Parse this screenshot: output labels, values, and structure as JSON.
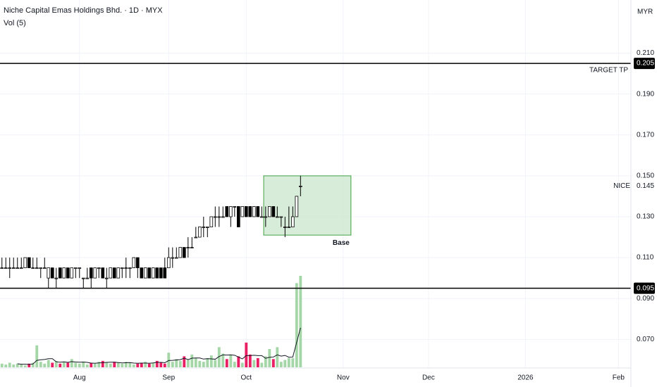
{
  "chart_data": {
    "type": "candlestick",
    "title": "Niche Capital Emas Holdings Bhd. · 1D · MYX",
    "subtitle": "Vol (5)",
    "currency": "MYR",
    "ylim": [
      0.056,
      0.236
    ],
    "yticks": [
      {
        "value": 0.21,
        "label": "0.210"
      },
      {
        "value": 0.19,
        "label": "0.190"
      },
      {
        "value": 0.17,
        "label": "0.170"
      },
      {
        "value": 0.15,
        "label": "0.150"
      },
      {
        "value": 0.13,
        "label": "0.130"
      },
      {
        "value": 0.11,
        "label": "0.110"
      },
      {
        "value": 0.09,
        "label": "0.090"
      },
      {
        "value": 0.07,
        "label": "0.070"
      }
    ],
    "xlim": [
      -0.5,
      162.2
    ],
    "xticks": [
      {
        "value": 20,
        "label": "Aug"
      },
      {
        "value": 43,
        "label": "Sep"
      },
      {
        "value": 63,
        "label": "Oct"
      },
      {
        "value": 88,
        "label": "Nov"
      },
      {
        "value": 110,
        "label": "Dec"
      },
      {
        "value": 135,
        "label": "2026"
      },
      {
        "value": 159,
        "label": "Feb"
      }
    ],
    "grid": true,
    "up_color": "#ffffff",
    "down_color": "#000000",
    "x": [
      0,
      1,
      2,
      3,
      4,
      5,
      6,
      7,
      8,
      9,
      10,
      11,
      12,
      13,
      14,
      15,
      16,
      17,
      18,
      19,
      20,
      21,
      22,
      23,
      24,
      25,
      26,
      27,
      28,
      29,
      30,
      31,
      32,
      33,
      34,
      35,
      36,
      37,
      38,
      39,
      40,
      41,
      42,
      43,
      44,
      45,
      46,
      47,
      48,
      49,
      50,
      51,
      52,
      53,
      54,
      55,
      56,
      57,
      58,
      59,
      60,
      61,
      62,
      63,
      64,
      65,
      66,
      67,
      68,
      69,
      70,
      71,
      72,
      73,
      74,
      75,
      76,
      77
    ],
    "open": [
      0.105,
      0.105,
      0.105,
      0.105,
      0.105,
      0.105,
      0.105,
      0.11,
      0.105,
      0.105,
      0.105,
      0.105,
      0.1,
      0.105,
      0.1,
      0.105,
      0.1,
      0.105,
      0.1,
      0.105,
      0.105,
      0.1,
      0.1,
      0.105,
      0.1,
      0.105,
      0.105,
      0.1,
      0.1,
      0.105,
      0.1,
      0.105,
      0.105,
      0.105,
      0.105,
      0.11,
      0.105,
      0.1,
      0.105,
      0.1,
      0.105,
      0.105,
      0.105,
      0.105,
      0.11,
      0.11,
      0.11,
      0.115,
      0.115,
      0.115,
      0.12,
      0.12,
      0.125,
      0.125,
      0.125,
      0.13,
      0.13,
      0.13,
      0.135,
      0.13,
      0.135,
      0.135,
      0.13,
      0.135,
      0.135,
      0.13,
      0.135,
      0.13,
      0.13,
      0.13,
      0.135,
      0.13,
      0.13,
      0.125,
      0.125,
      0.125,
      0.13,
      0.145
    ],
    "high": [
      0.11,
      0.11,
      0.11,
      0.11,
      0.11,
      0.11,
      0.11,
      0.11,
      0.11,
      0.11,
      0.105,
      0.11,
      0.105,
      0.105,
      0.105,
      0.105,
      0.105,
      0.105,
      0.105,
      0.105,
      0.105,
      0.1,
      0.105,
      0.105,
      0.105,
      0.105,
      0.105,
      0.105,
      0.105,
      0.105,
      0.105,
      0.105,
      0.11,
      0.105,
      0.11,
      0.11,
      0.105,
      0.105,
      0.105,
      0.105,
      0.105,
      0.105,
      0.11,
      0.115,
      0.115,
      0.115,
      0.115,
      0.115,
      0.12,
      0.12,
      0.125,
      0.125,
      0.13,
      0.125,
      0.13,
      0.135,
      0.135,
      0.135,
      0.135,
      0.135,
      0.135,
      0.135,
      0.135,
      0.135,
      0.135,
      0.135,
      0.135,
      0.135,
      0.135,
      0.135,
      0.135,
      0.135,
      0.13,
      0.13,
      0.135,
      0.135,
      0.14,
      0.15
    ],
    "low": [
      0.105,
      0.105,
      0.1,
      0.105,
      0.105,
      0.105,
      0.105,
      0.105,
      0.105,
      0.105,
      0.1,
      0.105,
      0.095,
      0.1,
      0.095,
      0.1,
      0.1,
      0.1,
      0.1,
      0.1,
      0.1,
      0.095,
      0.1,
      0.095,
      0.1,
      0.1,
      0.1,
      0.095,
      0.1,
      0.1,
      0.1,
      0.1,
      0.1,
      0.1,
      0.105,
      0.1,
      0.1,
      0.1,
      0.1,
      0.1,
      0.1,
      0.1,
      0.1,
      0.105,
      0.105,
      0.11,
      0.11,
      0.11,
      0.11,
      0.115,
      0.12,
      0.12,
      0.12,
      0.12,
      0.125,
      0.125,
      0.125,
      0.13,
      0.13,
      0.125,
      0.13,
      0.125,
      0.13,
      0.13,
      0.13,
      0.13,
      0.13,
      0.13,
      0.125,
      0.13,
      0.13,
      0.13,
      0.125,
      0.12,
      0.125,
      0.125,
      0.13,
      0.14
    ],
    "close": [
      0.105,
      0.105,
      0.105,
      0.105,
      0.105,
      0.105,
      0.11,
      0.105,
      0.105,
      0.105,
      0.105,
      0.105,
      0.105,
      0.1,
      0.1,
      0.1,
      0.105,
      0.1,
      0.105,
      0.105,
      0.105,
      0.1,
      0.1,
      0.1,
      0.105,
      0.105,
      0.1,
      0.1,
      0.105,
      0.1,
      0.105,
      0.105,
      0.105,
      0.105,
      0.11,
      0.105,
      0.1,
      0.105,
      0.1,
      0.105,
      0.1,
      0.1,
      0.1,
      0.11,
      0.11,
      0.11,
      0.115,
      0.11,
      0.115,
      0.115,
      0.12,
      0.125,
      0.125,
      0.125,
      0.13,
      0.13,
      0.13,
      0.13,
      0.13,
      0.135,
      0.135,
      0.125,
      0.135,
      0.13,
      0.13,
      0.135,
      0.13,
      0.13,
      0.13,
      0.135,
      0.13,
      0.13,
      0.13,
      0.125,
      0.125,
      0.13,
      0.14,
      0.145
    ],
    "volume": [
      4,
      3,
      5,
      3,
      4,
      3,
      2,
      4,
      5,
      24,
      6,
      4,
      8,
      5,
      7,
      4,
      6,
      5,
      9,
      5,
      4,
      6,
      3,
      5,
      4,
      6,
      7,
      5,
      4,
      6,
      5,
      4,
      6,
      5,
      3,
      4,
      5,
      6,
      4,
      5,
      7,
      5,
      4,
      16,
      6,
      9,
      7,
      12,
      8,
      14,
      10,
      7,
      6,
      10,
      13,
      8,
      22,
      15,
      9,
      14,
      6,
      12,
      5,
      27,
      14,
      8,
      10,
      5,
      12,
      20,
      9,
      22,
      6,
      8,
      10,
      10,
      92,
      100
    ],
    "volume_ma": [
      null,
      null,
      null,
      null,
      3.8,
      3.4,
      3.4,
      3.2,
      3.6,
      7.6,
      8.2,
      8.6,
      9.4,
      9.4,
      6,
      5.6,
      6,
      5.4,
      6.2,
      5.8,
      5.6,
      5.8,
      5.4,
      4.6,
      4.4,
      4.8,
      5,
      5.4,
      5.6,
      5.6,
      5.2,
      4.8,
      5,
      5.2,
      4.6,
      4.4,
      4.6,
      4.6,
      4.4,
      4.8,
      5.4,
      5.4,
      5,
      7.4,
      7.6,
      8,
      8.4,
      10,
      8.4,
      10,
      10.2,
      10.2,
      9,
      9.4,
      9.2,
      8.8,
      11.8,
      13.6,
      13.4,
      13.6,
      13.2,
      11.2,
      9.2,
      12.8,
      12.8,
      13.2,
      12.8,
      12.8,
      9.8,
      11,
      11.2,
      13.6,
      12.2,
      13,
      11,
      11.2,
      27.2,
      43.2
    ],
    "volume_ylim": [
      0,
      100
    ],
    "volume_up_color": "#a5d6a7",
    "volume_down_color": "#e91e63",
    "volume_ma_color": "#131722",
    "hlines": [
      {
        "value": 0.205,
        "label": "0.205",
        "text": "TARGET  TP"
      },
      {
        "value": 0.095,
        "label": "0.095"
      }
    ],
    "price_labels": [
      {
        "value": 0.145,
        "label": "0.145",
        "text": "NICE"
      }
    ],
    "box": {
      "text": "Base",
      "x": [
        67.5,
        90
      ],
      "y": [
        0.121,
        0.15
      ],
      "color": "#c8e6c9"
    }
  }
}
